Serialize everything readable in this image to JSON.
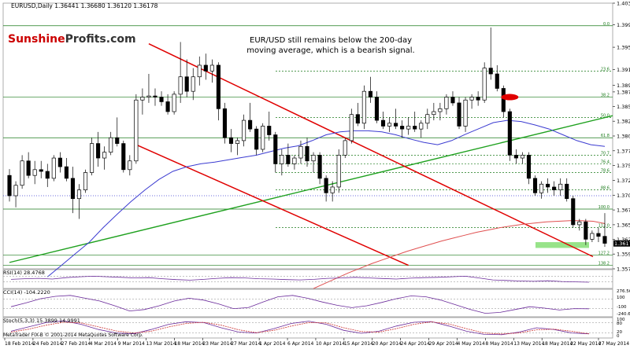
{
  "header": {
    "symbol_line": "EURUSD,Daily  1.36441 1.36680 1.36120 1.36178"
  },
  "brand": {
    "part1": "Sunshine",
    "part2": "Profits.com",
    "color1": "#cc0000",
    "color2": "#333333"
  },
  "annotation": {
    "line1": "EUR/USD still remains below the 200-day",
    "line2": "moving average, which is a bearish signal."
  },
  "indicators": {
    "rsi_label": "RSI(14) 28.4768",
    "cci_label": "CCI(14) -104.2220",
    "stoch_label": "Stoch(5,3,3) 15.3899 14.9991",
    "footer": "MetaTrader FIX-B © 2001-2014 MetaQuotes Software Corp.",
    "cci_scale": [
      "276.5679",
      "100",
      "-100",
      "-240.6155"
    ],
    "stoch_scale": [
      "100",
      "80",
      "20",
      "0"
    ]
  },
  "colors": {
    "background": "#ffffff",
    "grid": "#d6d6d6",
    "candle": "#000000",
    "ma50": "#3b3bd1",
    "ma200": "#e05050",
    "channel": "#e00000",
    "trendline": "#1fa11f",
    "fib": "#1a7a1a",
    "support_zone": "#7ddc6b",
    "price_box": "#000000",
    "price_text": "#ffffff"
  },
  "chart_data": [
    {
      "type": "candlestick",
      "symbol": "EURUSD",
      "timeframe": "Daily",
      "ylim": [
        1.3574,
        1.4032
      ],
      "y_ticks": [
        "1.40320",
        "1.39945",
        "1.39560",
        "1.39175",
        "1.38905",
        "1.38790",
        "1.38540",
        "1.38285",
        "1.38030",
        "1.37775",
        "1.37520",
        "1.37265",
        "1.37010",
        "1.36755",
        "1.36500",
        "1.36245",
        "1.35995",
        "1.35740"
      ],
      "x_ticks": [
        "18 Feb 2014",
        "24 Feb 2014",
        "27 Feb 2014",
        "4 Mar 2014",
        "9 Mar 2014",
        "13 Mar 2014",
        "18 Mar 2014",
        "23 Mar 2014",
        "27 Mar 2014",
        "1 Apr 2014",
        "6 Apr 2014",
        "10 Apr 2014",
        "15 Apr 2014",
        "20 Apr 2014",
        "24 Apr 2014",
        "29 Apr 2014",
        "4 May 2014",
        "8 May 2014",
        "13 May 2014",
        "18 May 2014",
        "22 May 2014",
        "27 May 2014"
      ],
      "last_price": "1.36178",
      "candles": [
        {
          "o": 1.3735,
          "h": 1.3746,
          "l": 1.369,
          "c": 1.37
        },
        {
          "o": 1.37,
          "h": 1.3725,
          "l": 1.368,
          "c": 1.3718
        },
        {
          "o": 1.3718,
          "h": 1.377,
          "l": 1.3712,
          "c": 1.376
        },
        {
          "o": 1.376,
          "h": 1.3775,
          "l": 1.373,
          "c": 1.3735
        },
        {
          "o": 1.3735,
          "h": 1.376,
          "l": 1.372,
          "c": 1.3745
        },
        {
          "o": 1.3745,
          "h": 1.376,
          "l": 1.373,
          "c": 1.3742
        },
        {
          "o": 1.3742,
          "h": 1.3755,
          "l": 1.3715,
          "c": 1.373
        },
        {
          "o": 1.373,
          "h": 1.377,
          "l": 1.3725,
          "c": 1.3765
        },
        {
          "o": 1.3765,
          "h": 1.3775,
          "l": 1.374,
          "c": 1.375
        },
        {
          "o": 1.375,
          "h": 1.3765,
          "l": 1.3725,
          "c": 1.373
        },
        {
          "o": 1.373,
          "h": 1.375,
          "l": 1.367,
          "c": 1.3695
        },
        {
          "o": 1.3695,
          "h": 1.372,
          "l": 1.366,
          "c": 1.371
        },
        {
          "o": 1.371,
          "h": 1.3745,
          "l": 1.3705,
          "c": 1.374
        },
        {
          "o": 1.374,
          "h": 1.38,
          "l": 1.3735,
          "c": 1.379
        },
        {
          "o": 1.379,
          "h": 1.381,
          "l": 1.375,
          "c": 1.3765
        },
        {
          "o": 1.3765,
          "h": 1.3785,
          "l": 1.3745,
          "c": 1.3775
        },
        {
          "o": 1.3775,
          "h": 1.381,
          "l": 1.377,
          "c": 1.38
        },
        {
          "o": 1.38,
          "h": 1.3835,
          "l": 1.3785,
          "c": 1.379
        },
        {
          "o": 1.379,
          "h": 1.3795,
          "l": 1.374,
          "c": 1.3745
        },
        {
          "o": 1.3745,
          "h": 1.377,
          "l": 1.3735,
          "c": 1.376
        },
        {
          "o": 1.376,
          "h": 1.3875,
          "l": 1.3755,
          "c": 1.3865
        },
        {
          "o": 1.3865,
          "h": 1.3885,
          "l": 1.384,
          "c": 1.387
        },
        {
          "o": 1.387,
          "h": 1.391,
          "l": 1.386,
          "c": 1.3872
        },
        {
          "o": 1.3872,
          "h": 1.3885,
          "l": 1.3855,
          "c": 1.387
        },
        {
          "o": 1.387,
          "h": 1.388,
          "l": 1.3855,
          "c": 1.3862
        },
        {
          "o": 1.3862,
          "h": 1.3875,
          "l": 1.384,
          "c": 1.3845
        },
        {
          "o": 1.3845,
          "h": 1.388,
          "l": 1.384,
          "c": 1.3875
        },
        {
          "o": 1.3875,
          "h": 1.3965,
          "l": 1.386,
          "c": 1.3905
        },
        {
          "o": 1.3905,
          "h": 1.3935,
          "l": 1.387,
          "c": 1.388
        },
        {
          "o": 1.388,
          "h": 1.392,
          "l": 1.3865,
          "c": 1.3905
        },
        {
          "o": 1.3905,
          "h": 1.394,
          "l": 1.389,
          "c": 1.3925
        },
        {
          "o": 1.3925,
          "h": 1.3945,
          "l": 1.39,
          "c": 1.3915
        },
        {
          "o": 1.3915,
          "h": 1.3935,
          "l": 1.3895,
          "c": 1.3925
        },
        {
          "o": 1.3925,
          "h": 1.393,
          "l": 1.383,
          "c": 1.385
        },
        {
          "o": 1.385,
          "h": 1.386,
          "l": 1.379,
          "c": 1.38
        },
        {
          "o": 1.38,
          "h": 1.3815,
          "l": 1.3775,
          "c": 1.379
        },
        {
          "o": 1.379,
          "h": 1.38,
          "l": 1.377,
          "c": 1.3795
        },
        {
          "o": 1.3795,
          "h": 1.384,
          "l": 1.3785,
          "c": 1.383
        },
        {
          "o": 1.383,
          "h": 1.386,
          "l": 1.381,
          "c": 1.3815
        },
        {
          "o": 1.3815,
          "h": 1.382,
          "l": 1.377,
          "c": 1.378
        },
        {
          "o": 1.378,
          "h": 1.3825,
          "l": 1.3775,
          "c": 1.382
        },
        {
          "o": 1.382,
          "h": 1.3845,
          "l": 1.3795,
          "c": 1.3805
        },
        {
          "o": 1.3805,
          "h": 1.381,
          "l": 1.374,
          "c": 1.3755
        },
        {
          "o": 1.3755,
          "h": 1.378,
          "l": 1.3735,
          "c": 1.377
        },
        {
          "o": 1.377,
          "h": 1.379,
          "l": 1.375,
          "c": 1.3755
        },
        {
          "o": 1.3755,
          "h": 1.377,
          "l": 1.3745,
          "c": 1.3765
        },
        {
          "o": 1.3765,
          "h": 1.3795,
          "l": 1.3755,
          "c": 1.3785
        },
        {
          "o": 1.3785,
          "h": 1.38,
          "l": 1.375,
          "c": 1.376
        },
        {
          "o": 1.376,
          "h": 1.3775,
          "l": 1.374,
          "c": 1.377
        },
        {
          "o": 1.377,
          "h": 1.3775,
          "l": 1.372,
          "c": 1.373
        },
        {
          "o": 1.373,
          "h": 1.3735,
          "l": 1.369,
          "c": 1.3705
        },
        {
          "o": 1.3705,
          "h": 1.3725,
          "l": 1.369,
          "c": 1.3715
        },
        {
          "o": 1.3715,
          "h": 1.378,
          "l": 1.3705,
          "c": 1.377
        },
        {
          "o": 1.377,
          "h": 1.38,
          "l": 1.3765,
          "c": 1.3795
        },
        {
          "o": 1.3795,
          "h": 1.385,
          "l": 1.379,
          "c": 1.384
        },
        {
          "o": 1.384,
          "h": 1.386,
          "l": 1.382,
          "c": 1.3825
        },
        {
          "o": 1.3825,
          "h": 1.389,
          "l": 1.3815,
          "c": 1.388
        },
        {
          "o": 1.388,
          "h": 1.3905,
          "l": 1.386,
          "c": 1.387
        },
        {
          "o": 1.387,
          "h": 1.388,
          "l": 1.3825,
          "c": 1.383
        },
        {
          "o": 1.383,
          "h": 1.3845,
          "l": 1.3815,
          "c": 1.382
        },
        {
          "o": 1.382,
          "h": 1.3835,
          "l": 1.381,
          "c": 1.3825
        },
        {
          "o": 1.3825,
          "h": 1.385,
          "l": 1.3815,
          "c": 1.382
        },
        {
          "o": 1.382,
          "h": 1.383,
          "l": 1.38,
          "c": 1.3815
        },
        {
          "o": 1.3815,
          "h": 1.3835,
          "l": 1.3805,
          "c": 1.382
        },
        {
          "o": 1.382,
          "h": 1.3845,
          "l": 1.381,
          "c": 1.3815
        },
        {
          "o": 1.3815,
          "h": 1.383,
          "l": 1.38,
          "c": 1.3825
        },
        {
          "o": 1.3825,
          "h": 1.385,
          "l": 1.3815,
          "c": 1.384
        },
        {
          "o": 1.384,
          "h": 1.386,
          "l": 1.383,
          "c": 1.3845
        },
        {
          "o": 1.3845,
          "h": 1.386,
          "l": 1.383,
          "c": 1.385
        },
        {
          "o": 1.385,
          "h": 1.3875,
          "l": 1.384,
          "c": 1.387
        },
        {
          "o": 1.387,
          "h": 1.388,
          "l": 1.3855,
          "c": 1.386
        },
        {
          "o": 1.386,
          "h": 1.387,
          "l": 1.3815,
          "c": 1.382
        },
        {
          "o": 1.382,
          "h": 1.387,
          "l": 1.381,
          "c": 1.3865
        },
        {
          "o": 1.3865,
          "h": 1.3875,
          "l": 1.385,
          "c": 1.387
        },
        {
          "o": 1.387,
          "h": 1.388,
          "l": 1.3855,
          "c": 1.3865
        },
        {
          "o": 1.3865,
          "h": 1.393,
          "l": 1.386,
          "c": 1.392
        },
        {
          "o": 1.392,
          "h": 1.399,
          "l": 1.39,
          "c": 1.391
        },
        {
          "o": 1.391,
          "h": 1.3925,
          "l": 1.388,
          "c": 1.3885
        },
        {
          "o": 1.3885,
          "h": 1.389,
          "l": 1.3835,
          "c": 1.3845
        },
        {
          "o": 1.3845,
          "h": 1.385,
          "l": 1.376,
          "c": 1.377
        },
        {
          "o": 1.377,
          "h": 1.378,
          "l": 1.3755,
          "c": 1.3765
        },
        {
          "o": 1.3765,
          "h": 1.3775,
          "l": 1.3755,
          "c": 1.377
        },
        {
          "o": 1.377,
          "h": 1.3775,
          "l": 1.372,
          "c": 1.373
        },
        {
          "o": 1.373,
          "h": 1.3735,
          "l": 1.37,
          "c": 1.3705
        },
        {
          "o": 1.3705,
          "h": 1.3725,
          "l": 1.3695,
          "c": 1.372
        },
        {
          "o": 1.372,
          "h": 1.373,
          "l": 1.3705,
          "c": 1.3715
        },
        {
          "o": 1.3715,
          "h": 1.3725,
          "l": 1.37,
          "c": 1.371
        },
        {
          "o": 1.371,
          "h": 1.373,
          "l": 1.37,
          "c": 1.372
        },
        {
          "o": 1.372,
          "h": 1.373,
          "l": 1.369,
          "c": 1.3695
        },
        {
          "o": 1.3695,
          "h": 1.37,
          "l": 1.3645,
          "c": 1.365
        },
        {
          "o": 1.365,
          "h": 1.366,
          "l": 1.364,
          "c": 1.3655
        },
        {
          "o": 1.3655,
          "h": 1.366,
          "l": 1.3615,
          "c": 1.3625
        },
        {
          "o": 1.3625,
          "h": 1.364,
          "l": 1.362,
          "c": 1.3635
        },
        {
          "o": 1.3635,
          "h": 1.3645,
          "l": 1.362,
          "c": 1.363
        },
        {
          "o": 1.363,
          "h": 1.367,
          "l": 1.3612,
          "c": 1.3618
        }
      ],
      "ma50": [
        1.356,
        1.358,
        1.36,
        1.362,
        1.3645,
        1.3668,
        1.369,
        1.371,
        1.3728,
        1.3742,
        1.375,
        1.3755,
        1.3758,
        1.3762,
        1.3766,
        1.377,
        1.3776,
        1.3782,
        1.3786,
        1.3795,
        1.3805,
        1.381,
        1.3812,
        1.3812,
        1.381,
        1.3805,
        1.3798,
        1.3792,
        1.3788,
        1.3795,
        1.3806,
        1.3816,
        1.3826,
        1.383,
        1.3828,
        1.3822,
        1.3815,
        1.3805,
        1.3795,
        1.3788,
        1.3785
      ],
      "ma200": [
        1.354,
        1.3549,
        1.3558,
        1.3567,
        1.3575,
        1.3583,
        1.359,
        1.3597,
        1.3604,
        1.361,
        1.3616,
        1.3622,
        1.3627,
        1.3632,
        1.3637,
        1.3641,
        1.3645,
        1.3648,
        1.3651,
        1.3653,
        1.3655,
        1.3656,
        1.3657,
        1.3657,
        1.3656,
        1.3652
      ],
      "fib_levels": [
        {
          "label": "0.0",
          "value": 1.3993,
          "style": "solid"
        },
        {
          "label": "23.6",
          "value": 1.3915,
          "style": "dashed"
        },
        {
          "label": "38.2",
          "value": 1.387,
          "style": "solid"
        },
        {
          "label": "50.0",
          "value": 1.3835,
          "style": "dashed"
        },
        {
          "label": "61.8",
          "value": 1.38,
          "style": "solid"
        },
        {
          "label": "70.7",
          "value": 1.377,
          "style": "dashed"
        },
        {
          "label": "76.4",
          "value": 1.3755,
          "style": "dashed"
        },
        {
          "label": "78.6",
          "value": 1.374,
          "style": "dashed"
        },
        {
          "label": "88.6",
          "value": 1.371,
          "style": "dashed"
        },
        {
          "label": "100.0",
          "value": 1.3677,
          "style": "solid"
        },
        {
          "label": "112.0",
          "value": 1.3645,
          "style": "dashed"
        },
        {
          "label": "127.2",
          "value": 1.3598,
          "style": "solid"
        },
        {
          "label": "138.2",
          "value": 1.358,
          "style": "solid"
        }
      ]
    },
    {
      "type": "line",
      "title": "RSI(14) 28.4768",
      "ylim": [
        0,
        100
      ],
      "levels": [
        30,
        70
      ],
      "values": [
        48,
        52,
        55,
        50,
        60,
        66,
        70,
        66,
        62,
        58,
        60,
        52,
        46,
        42,
        48,
        55,
        60,
        58,
        52,
        50,
        46,
        44,
        48,
        55,
        58,
        62,
        58,
        54,
        50,
        56,
        60,
        62,
        66,
        70,
        58,
        44,
        40,
        36,
        34,
        38,
        33,
        30,
        28
      ]
    },
    {
      "type": "line",
      "title": "CCI(14) -104.2220",
      "ylim": [
        -240.6155,
        276.5679
      ],
      "levels": [
        100,
        -100
      ],
      "values": [
        -60,
        20,
        110,
        160,
        180,
        120,
        60,
        -40,
        -150,
        -120,
        -40,
        60,
        120,
        80,
        0,
        -100,
        -80,
        40,
        150,
        180,
        120,
        40,
        -30,
        -80,
        -40,
        30,
        110,
        170,
        150,
        80,
        -20,
        -120,
        -200,
        -180,
        -120,
        -60,
        -90,
        -130,
        -100,
        -104
      ]
    },
    {
      "type": "line",
      "title": "Stoch(5,3,3) 15.3899 14.9991",
      "ylim": [
        0,
        100
      ],
      "levels": [
        20,
        80
      ],
      "series": [
        {
          "values": [
            30,
            55,
            80,
            90,
            70,
            40,
            20,
            15,
            40,
            70,
            85,
            80,
            50,
            25,
            20,
            45,
            75,
            88,
            70,
            35,
            18,
            30,
            60,
            82,
            86,
            60,
            30,
            12,
            10,
            25,
            50,
            40,
            20,
            15
          ]
        },
        {
          "values": [
            25,
            42,
            65,
            82,
            78,
            55,
            32,
            20,
            30,
            55,
            75,
            82,
            65,
            38,
            22,
            35,
            60,
            80,
            78,
            50,
            28,
            25,
            45,
            70,
            84,
            72,
            45,
            20,
            14,
            20,
            38,
            42,
            30,
            15
          ]
        }
      ]
    }
  ]
}
